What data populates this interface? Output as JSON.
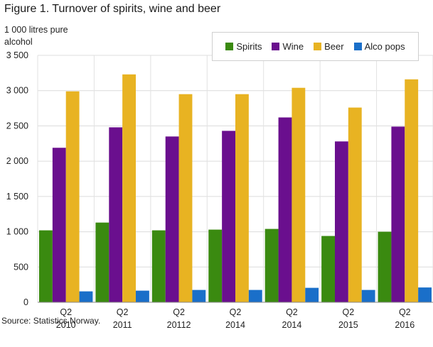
{
  "figure": {
    "title": "Figure 1. Turnover of spirits, wine and beer",
    "source": "Source: Statistics Norway."
  },
  "chart_data": {
    "type": "bar",
    "title": "Figure 1. Turnover of spirits, wine and beer",
    "ylabel": "1 000 litres  pure alcohol",
    "xlabel": "",
    "ylim": [
      0,
      3500
    ],
    "yticks": [
      0,
      500,
      1000,
      1500,
      2000,
      2500,
      3000,
      3500
    ],
    "ytick_labels": [
      "0",
      "500",
      "1 000",
      "1 500",
      "2 000",
      "2 500",
      "3 000",
      "3 500"
    ],
    "grid": true,
    "legend_position": "top-right",
    "categories": [
      {
        "line1": "Q2",
        "line2": "2010"
      },
      {
        "line1": "Q2",
        "line2": "2011"
      },
      {
        "line1": "Q2",
        "line2": "20112"
      },
      {
        "line1": "Q2",
        "line2": "2014"
      },
      {
        "line1": "Q2",
        "line2": "2014"
      },
      {
        "line1": "Q2",
        "line2": "2015"
      },
      {
        "line1": "Q2",
        "line2": "2016"
      }
    ],
    "series": [
      {
        "name": "Spirits",
        "color": "#3a8a10",
        "values": [
          1020,
          1130,
          1020,
          1030,
          1040,
          940,
          1000
        ]
      },
      {
        "name": "Wine",
        "color": "#6a0f8e",
        "values": [
          2190,
          2480,
          2350,
          2430,
          2620,
          2280,
          2490
        ]
      },
      {
        "name": "Beer",
        "color": "#e8b322",
        "values": [
          2990,
          3230,
          2950,
          2950,
          3040,
          2760,
          3160
        ]
      },
      {
        "name": "Alco pops",
        "color": "#1a6fc9",
        "values": [
          155,
          165,
          175,
          175,
          205,
          175,
          210
        ]
      }
    ]
  }
}
